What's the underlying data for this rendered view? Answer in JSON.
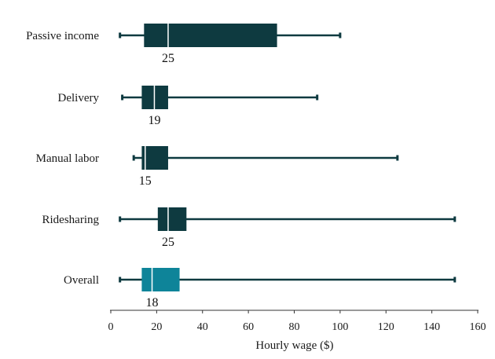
{
  "chart_data": {
    "type": "boxplot",
    "orientation": "horizontal",
    "title": "",
    "xlabel": "Hourly wage ($)",
    "ylabel": "",
    "xlim": [
      0,
      160
    ],
    "xticks": [
      0,
      20,
      40,
      60,
      80,
      100,
      120,
      140,
      160
    ],
    "grid": false,
    "categories": [
      "Passive income",
      "Delivery",
      "Manual labor",
      "Ridesharing",
      "Overall"
    ],
    "boxes": [
      {
        "category": "Passive income",
        "whisker_low": 4,
        "q1": 14.5,
        "median": 25,
        "q3": 72.5,
        "whisker_high": 100,
        "median_label": "25",
        "color": "#0e3a40"
      },
      {
        "category": "Delivery",
        "whisker_low": 5,
        "q1": 13.5,
        "median": 19,
        "q3": 25,
        "whisker_high": 90,
        "median_label": "19",
        "color": "#0e3a40"
      },
      {
        "category": "Manual labor",
        "whisker_low": 10,
        "q1": 13.5,
        "median": 15,
        "q3": 25,
        "whisker_high": 125,
        "median_label": "15",
        "color": "#0e3a40"
      },
      {
        "category": "Ridesharing",
        "whisker_low": 4,
        "q1": 20.5,
        "median": 25,
        "q3": 33,
        "whisker_high": 150,
        "median_label": "25",
        "color": "#0e3a40"
      },
      {
        "category": "Overall",
        "whisker_low": 4,
        "q1": 13.5,
        "median": 18,
        "q3": 30,
        "whisker_high": 150,
        "median_label": "18",
        "color": "#0e8499"
      }
    ],
    "colors": {
      "default": "#0e3a40",
      "highlight": "#0e8499",
      "median_line": "#ffffff",
      "axis": "#333333"
    }
  }
}
